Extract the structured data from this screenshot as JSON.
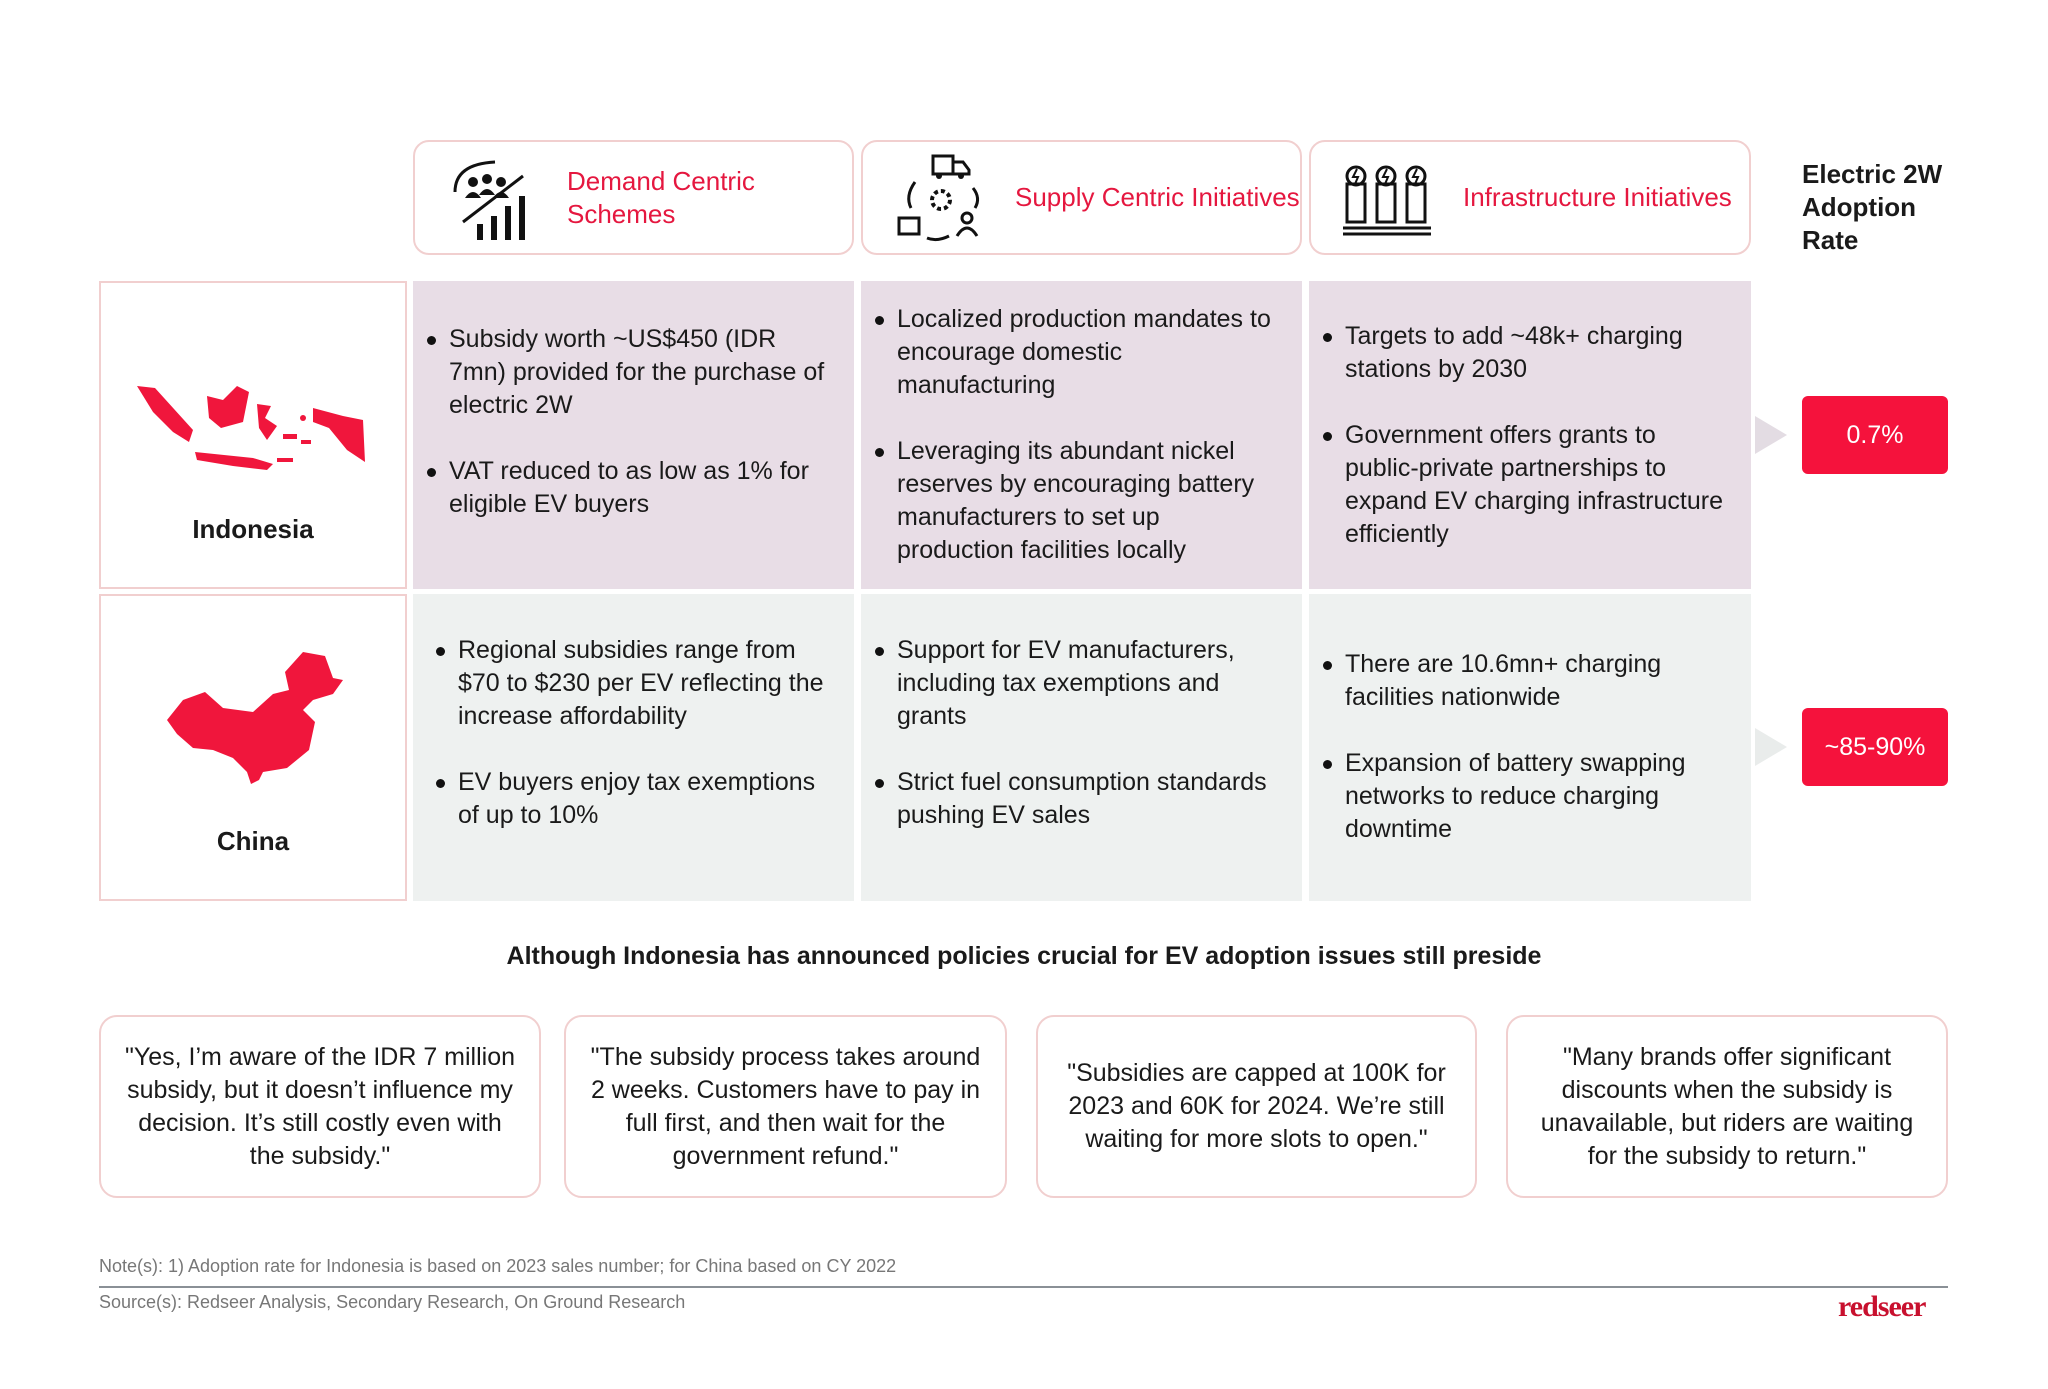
{
  "header": {
    "columns": [
      {
        "title": "Demand Centric Schemes",
        "icon": "people-growth-chart-icon"
      },
      {
        "title": "Supply Centric Initiatives",
        "icon": "supply-chain-cycle-icon"
      },
      {
        "title": "Infrastructure Initiatives",
        "icon": "charging-stations-icon"
      }
    ],
    "adoption_label": "Electric 2W Adoption Rate"
  },
  "rows": [
    {
      "country": "Indonesia",
      "map_icon": "indonesia-map-icon",
      "demand": [
        "Subsidy worth ~US$450 (IDR 7mn) provided for the purchase of electric 2W",
        "VAT reduced to as low as 1% for eligible EV buyers"
      ],
      "supply": [
        "Localized production mandates to encourage domestic manufacturing",
        "Leveraging its abundant nickel reserves by encouraging battery manufacturers to set up production facilities locally"
      ],
      "infra": [
        "Targets to add ~48k+ charging stations by 2030",
        "Government offers grants to public-private partnerships to expand EV charging infrastructure efficiently"
      ],
      "adoption": "0.7%"
    },
    {
      "country": "China",
      "map_icon": "china-map-icon",
      "demand": [
        "Regional subsidies range from $70 to $230 per EV reflecting the increase affordability",
        "EV buyers enjoy tax exemptions of up to 10%"
      ],
      "supply": [
        "Support for EV manufacturers, including tax exemptions and grants",
        "Strict fuel consumption standards pushing EV sales"
      ],
      "infra": [
        "There are 10.6mn+ charging facilities nationwide",
        "Expansion of battery swapping networks to reduce charging downtime"
      ],
      "adoption": "~85-90%"
    }
  ],
  "headline": "Although Indonesia has announced policies crucial for EV adoption issues still preside",
  "quotes": [
    "\"Yes, I’m aware of the IDR 7 million subsidy, but it doesn’t influence my decision. It’s still costly even with the subsidy.\"",
    "\"The subsidy process takes around 2 weeks. Customers have to pay in full first, and then wait for the government refund.\"",
    "\"Subsidies are capped at 100K for 2023 and 60K for 2024. We’re still waiting for more slots to open.\"",
    "\"Many brands offer significant discounts when the subsidy is unavailable, but riders are waiting for the subsidy to return.\""
  ],
  "footer": {
    "note": "Note(s): 1) Adoption rate for Indonesia is based on 2023 sales number; for China based on CY 2022",
    "source": "Source(s): Redseer Analysis, Secondary Research, On Ground Research",
    "logo": "redseer"
  },
  "colors": {
    "accent": "#e5173f",
    "badge": "#f5123c",
    "indonesia_row": "#e8dde6",
    "china_row": "#eef1f0"
  }
}
